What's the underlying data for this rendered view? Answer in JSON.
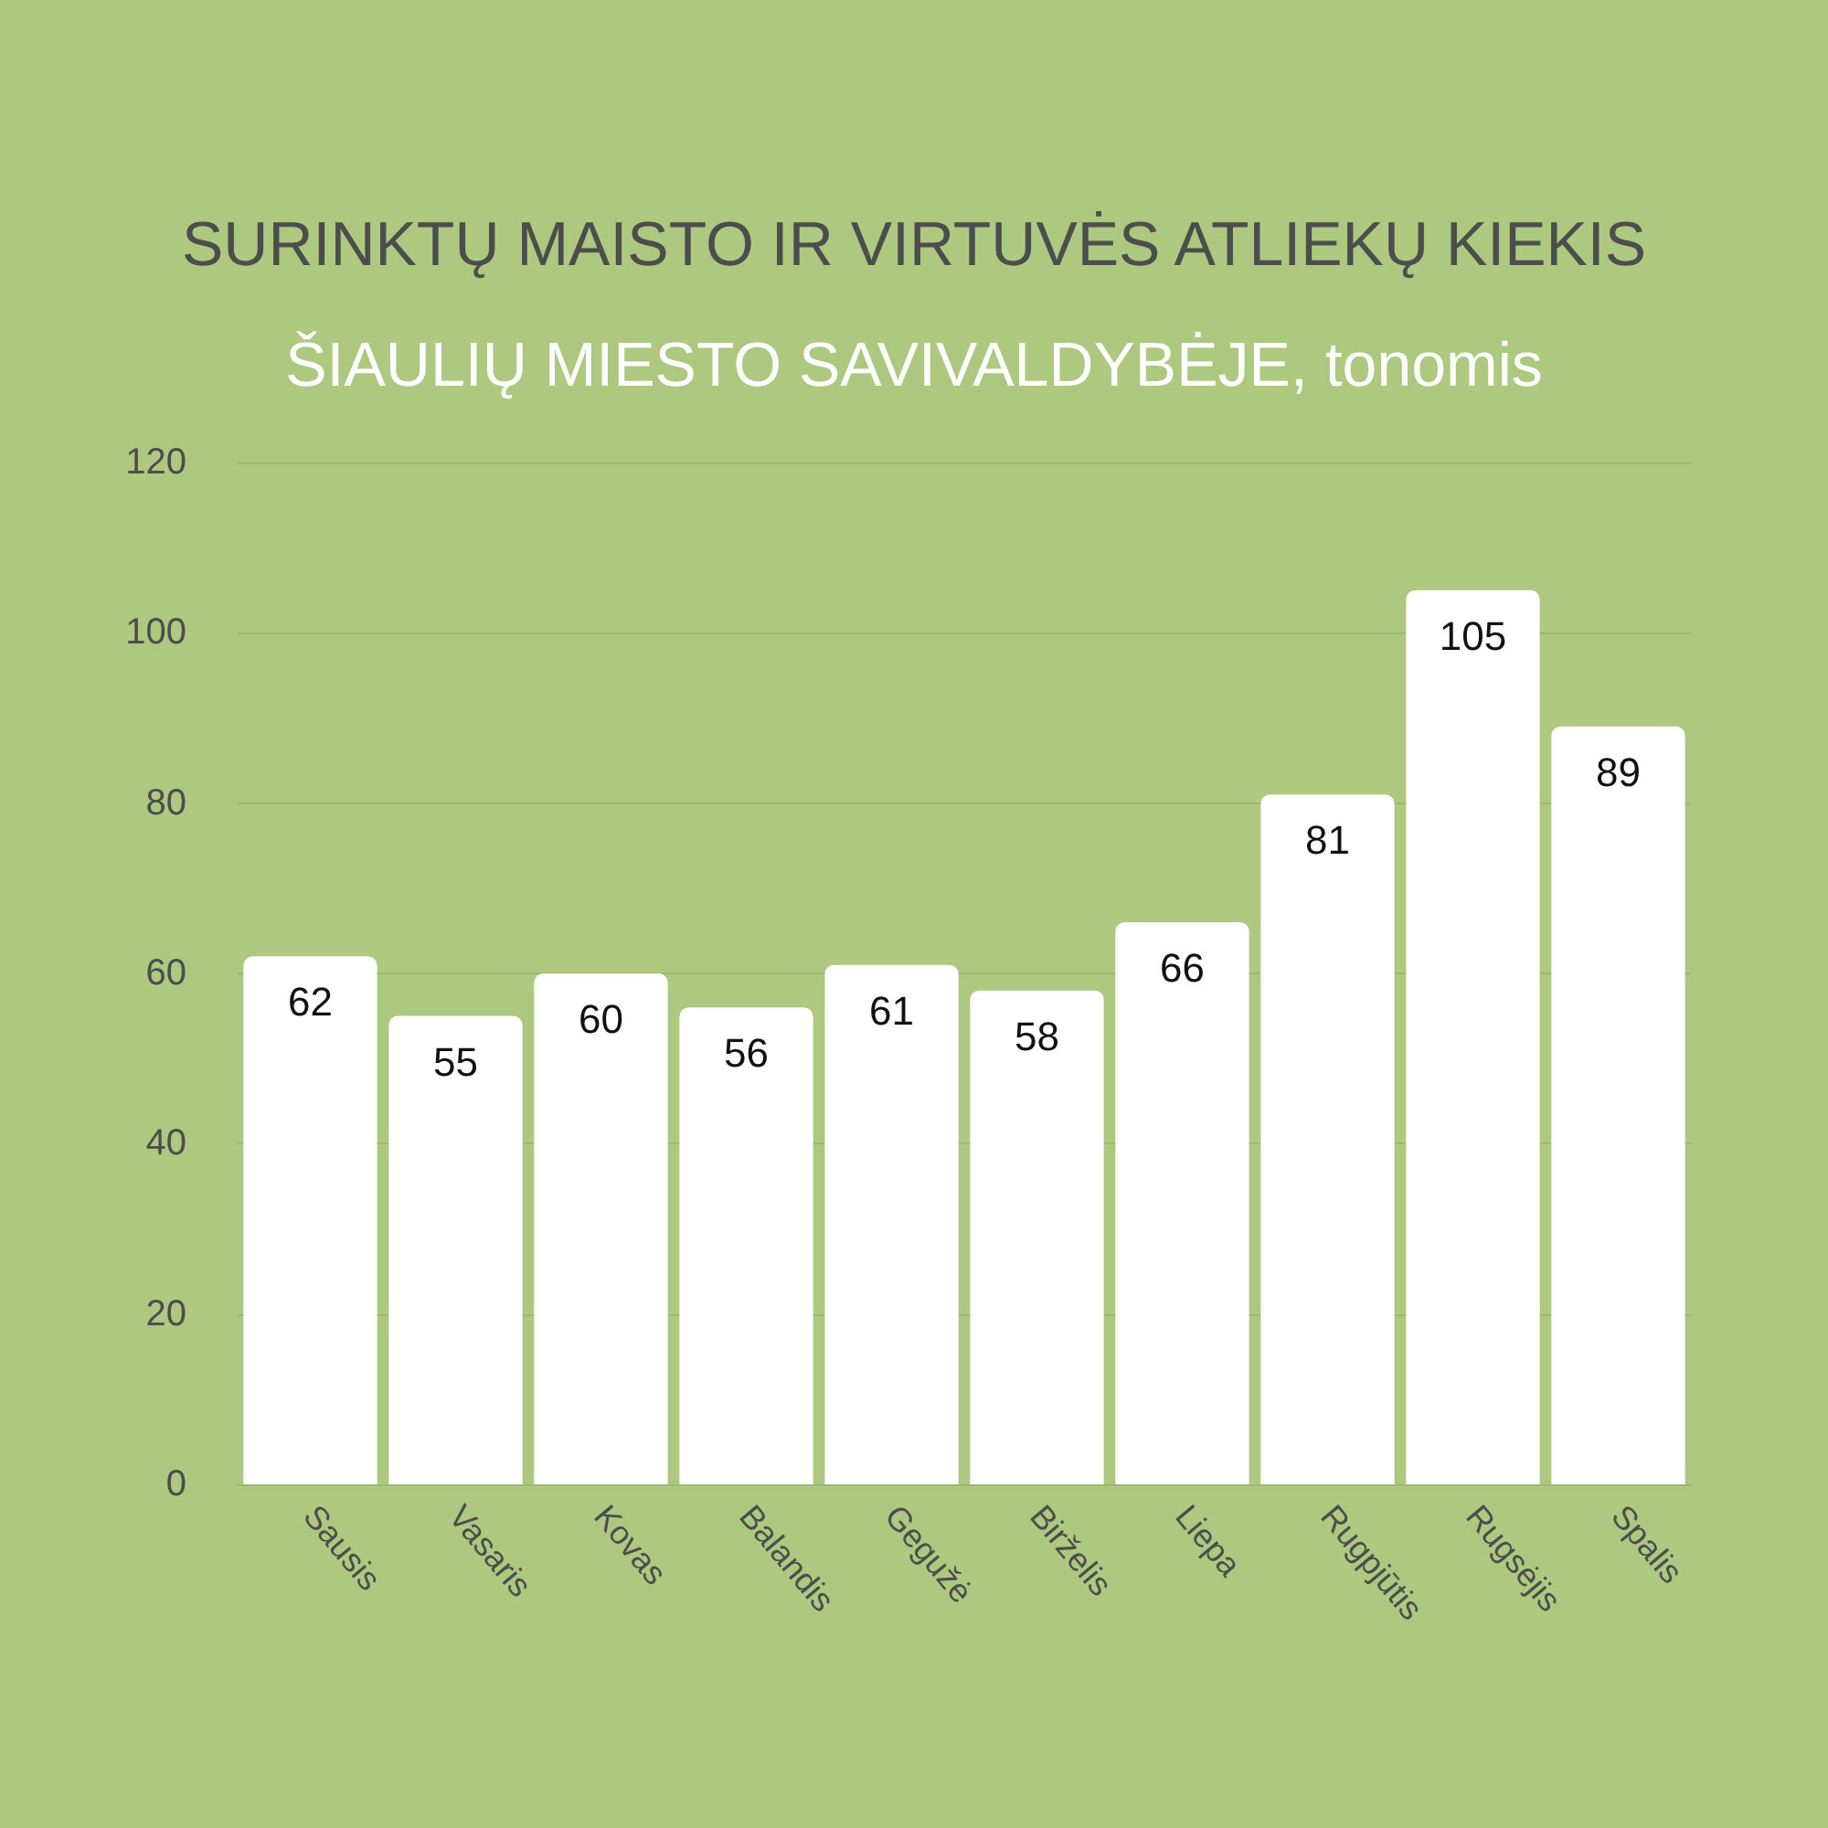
{
  "chart_data": {
    "type": "bar",
    "title": "SURINKTŲ MAISTO IR VIRTUVĖS ATLIEKŲ KIEKIS",
    "subtitle": "ŠIAULIŲ MIESTO SAVIVALDYBĖJE, tonomis",
    "categories": [
      "Sausis",
      "Vasaris",
      "Kovas",
      "Balandis",
      "Gegužė",
      "Birželis",
      "Liepa",
      "Rugpjūtis",
      "Rugsėjis",
      "Spalis"
    ],
    "values": [
      62,
      55,
      60,
      56,
      61,
      58,
      66,
      81,
      105,
      89
    ],
    "color": "#ffffff",
    "ylim": [
      0,
      120
    ],
    "yticks": [
      0,
      20,
      40,
      60,
      80,
      100,
      120
    ],
    "grid": "y",
    "data_labels": true
  }
}
